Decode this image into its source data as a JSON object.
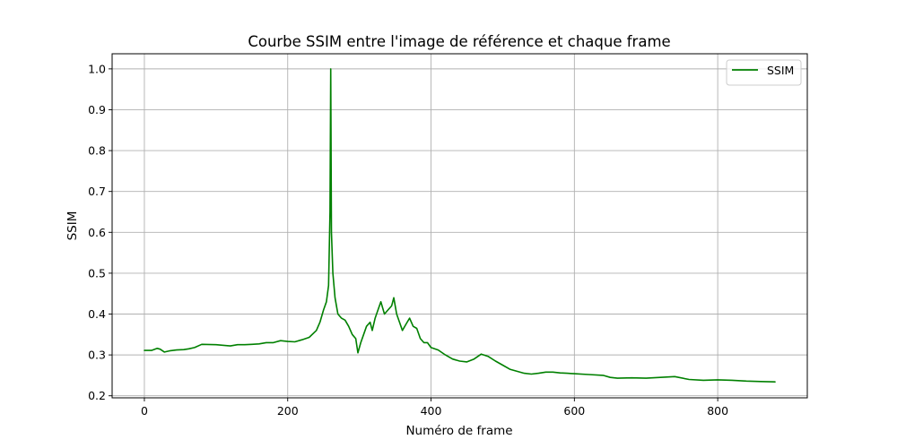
{
  "chart_data": {
    "type": "line",
    "title": "Courbe SSIM entre l'image de référence et chaque frame",
    "xlabel": "Numéro de frame",
    "ylabel": "SSIM",
    "xlim": [
      -45,
      925
    ],
    "ylim": [
      0.195,
      1.037
    ],
    "xticks": [
      0,
      200,
      400,
      600,
      800
    ],
    "xtick_labels": [
      "0",
      "200",
      "400",
      "600",
      "800"
    ],
    "yticks": [
      0.2,
      0.3,
      0.4,
      0.5,
      0.6,
      0.7,
      0.8,
      0.9,
      1.0
    ],
    "ytick_labels": [
      "0.2",
      "0.3",
      "0.4",
      "0.5",
      "0.6",
      "0.7",
      "0.8",
      "0.9",
      "1.0"
    ],
    "grid": true,
    "legend_position": "top-right",
    "series": [
      {
        "name": "SSIM",
        "color": "#008000",
        "x": [
          0,
          10,
          18,
          22,
          28,
          35,
          45,
          55,
          62,
          70,
          80,
          100,
          120,
          130,
          140,
          150,
          160,
          170,
          180,
          190,
          200,
          210,
          220,
          230,
          240,
          245,
          250,
          254,
          257,
          259,
          260,
          261,
          263,
          266,
          270,
          275,
          280,
          285,
          290,
          295,
          298,
          302,
          306,
          310,
          315,
          318,
          322,
          326,
          330,
          335,
          340,
          345,
          348,
          352,
          356,
          360,
          365,
          370,
          375,
          380,
          385,
          390,
          395,
          400,
          410,
          420,
          430,
          440,
          450,
          460,
          470,
          480,
          490,
          500,
          510,
          520,
          530,
          540,
          550,
          560,
          570,
          580,
          590,
          600,
          620,
          640,
          650,
          660,
          680,
          700,
          720,
          740,
          760,
          780,
          800,
          820,
          840,
          860,
          880
        ],
        "y": [
          0.311,
          0.311,
          0.316,
          0.314,
          0.307,
          0.31,
          0.312,
          0.313,
          0.315,
          0.318,
          0.326,
          0.325,
          0.322,
          0.325,
          0.325,
          0.326,
          0.327,
          0.33,
          0.33,
          0.335,
          0.333,
          0.332,
          0.337,
          0.343,
          0.36,
          0.38,
          0.41,
          0.43,
          0.47,
          0.65,
          1.0,
          0.6,
          0.5,
          0.44,
          0.4,
          0.39,
          0.385,
          0.37,
          0.35,
          0.34,
          0.305,
          0.33,
          0.35,
          0.37,
          0.38,
          0.36,
          0.39,
          0.41,
          0.43,
          0.4,
          0.41,
          0.42,
          0.44,
          0.4,
          0.38,
          0.36,
          0.375,
          0.39,
          0.37,
          0.365,
          0.34,
          0.33,
          0.33,
          0.318,
          0.312,
          0.3,
          0.29,
          0.285,
          0.283,
          0.29,
          0.302,
          0.296,
          0.285,
          0.275,
          0.265,
          0.26,
          0.255,
          0.253,
          0.255,
          0.258,
          0.258,
          0.256,
          0.255,
          0.254,
          0.252,
          0.25,
          0.245,
          0.243,
          0.244,
          0.243,
          0.245,
          0.247,
          0.24,
          0.238,
          0.239,
          0.238,
          0.236,
          0.235,
          0.234
        ]
      }
    ]
  }
}
